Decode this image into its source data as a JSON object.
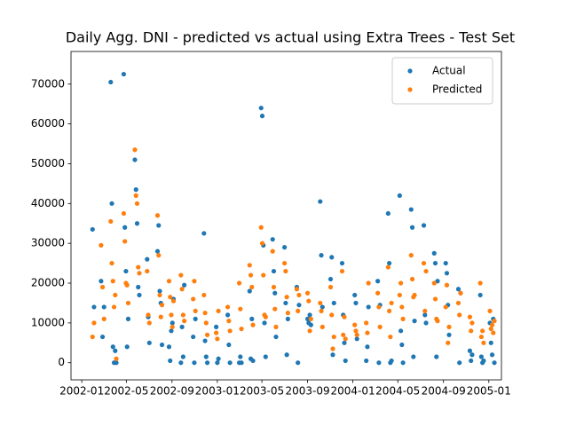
{
  "chart_data": {
    "type": "scatter",
    "title": "Daily Agg. DNI - predicted vs actual using Extra Trees - Test Set",
    "x": [
      "2002-01-30",
      "2002-02-03",
      "2002-02-22",
      "2002-02-26",
      "2002-03-02",
      "2002-03-20",
      "2002-03-23",
      "2002-03-26",
      "2002-03-29",
      "2002-04-01",
      "2002-04-04",
      "2002-04-24",
      "2002-04-27",
      "2002-04-30",
      "2002-05-03",
      "2002-05-06",
      "2002-05-24",
      "2002-05-27",
      "2002-05-30",
      "2002-06-02",
      "2002-06-05",
      "2002-06-26",
      "2002-06-29",
      "2002-07-02",
      "2002-07-24",
      "2002-07-27",
      "2002-07-30",
      "2002-08-02",
      "2002-08-05",
      "2002-08-24",
      "2002-08-27",
      "2002-08-30",
      "2002-09-02",
      "2002-09-05",
      "2002-09-25",
      "2002-09-28",
      "2002-10-01",
      "2002-10-04",
      "2002-10-28",
      "2002-10-31",
      "2002-11-03",
      "2002-11-26",
      "2002-11-29",
      "2002-12-02",
      "2002-12-05",
      "2002-12-29",
      "2003-01-01",
      "2003-01-04",
      "2003-01-29",
      "2003-02-01",
      "2003-02-04",
      "2003-03-01",
      "2003-03-04",
      "2003-03-07",
      "2003-03-29",
      "2003-04-01",
      "2003-04-04",
      "2003-04-07",
      "2003-04-29",
      "2003-05-02",
      "2003-05-05",
      "2003-05-08",
      "2003-05-11",
      "2003-05-30",
      "2003-06-02",
      "2003-06-05",
      "2003-06-08",
      "2003-07-01",
      "2003-07-04",
      "2003-07-07",
      "2003-07-10",
      "2003-08-03",
      "2003-08-06",
      "2003-08-09",
      "2003-09-01",
      "2003-09-04",
      "2003-09-07",
      "2003-09-10",
      "2003-10-05",
      "2003-10-08",
      "2003-10-11",
      "2003-11-02",
      "2003-11-05",
      "2003-11-08",
      "2003-11-11",
      "2003-12-03",
      "2003-12-06",
      "2003-12-09",
      "2003-12-12",
      "2004-01-06",
      "2004-01-09",
      "2004-01-12",
      "2004-02-06",
      "2004-02-09",
      "2004-02-12",
      "2004-03-08",
      "2004-03-11",
      "2004-03-14",
      "2004-04-05",
      "2004-04-08",
      "2004-04-11",
      "2004-04-14",
      "2004-05-06",
      "2004-05-09",
      "2004-05-12",
      "2004-05-15",
      "2004-06-06",
      "2004-06-09",
      "2004-06-12",
      "2004-06-15",
      "2004-07-10",
      "2004-07-13",
      "2004-07-16",
      "2004-08-07",
      "2004-08-10",
      "2004-08-13",
      "2004-08-16",
      "2004-09-07",
      "2004-09-10",
      "2004-09-13",
      "2004-09-16",
      "2004-10-11",
      "2004-10-14",
      "2004-10-17",
      "2004-11-11",
      "2004-11-14",
      "2004-11-17",
      "2004-12-09",
      "2004-12-12",
      "2004-12-15",
      "2004-12-18",
      "2005-01-04",
      "2005-01-07",
      "2005-01-10",
      "2005-01-13",
      "2005-01-16"
    ],
    "series": [
      {
        "name": "Actual",
        "color": "#1f77b4",
        "values": [
          33500,
          14000,
          20500,
          6500,
          14000,
          70500,
          40000,
          4000,
          0,
          3000,
          0,
          72500,
          34000,
          23000,
          4000,
          11000,
          51000,
          43500,
          35000,
          19000,
          17000,
          26000,
          11500,
          5000,
          28000,
          34500,
          18000,
          15000,
          4500,
          4000,
          500,
          8000,
          10000,
          16000,
          0,
          9000,
          1500,
          19500,
          6500,
          0,
          11000,
          32500,
          5500,
          1500,
          0,
          9000,
          0,
          1000,
          12000,
          4500,
          0,
          0,
          1500,
          0,
          18000,
          1000,
          11000,
          500,
          64000,
          62000,
          29500,
          10000,
          1500,
          31000,
          23000,
          17500,
          6500,
          29000,
          15000,
          2000,
          11000,
          19000,
          0,
          14500,
          11000,
          10000,
          12000,
          9500,
          40500,
          27000,
          14000,
          21000,
          26500,
          2000,
          15000,
          25000,
          12000,
          5000,
          500,
          17000,
          15000,
          6000,
          500,
          4000,
          14000,
          20500,
          0,
          14500,
          37500,
          25000,
          0,
          500,
          42000,
          8000,
          4500,
          0,
          38500,
          34000,
          1500,
          10500,
          34500,
          12000,
          10000,
          27500,
          25000,
          1500,
          20500,
          25000,
          22500,
          14500,
          7000,
          18500,
          0,
          17500,
          3000,
          500,
          2000,
          17000,
          1500,
          0,
          500,
          10000,
          5000,
          2000,
          11000,
          0
        ]
      },
      {
        "name": "Predicted",
        "color": "#ff7f0e",
        "values": [
          6500,
          10000,
          29500,
          19000,
          11000,
          35500,
          25000,
          20500,
          14000,
          17000,
          1000,
          37500,
          30500,
          20000,
          19500,
          15000,
          53500,
          42000,
          40000,
          24000,
          22500,
          23000,
          12000,
          10000,
          37000,
          27000,
          17000,
          11500,
          14500,
          20500,
          16500,
          12000,
          9000,
          15500,
          22000,
          18500,
          12000,
          10500,
          16000,
          20500,
          13000,
          17000,
          12500,
          10000,
          7000,
          7500,
          6000,
          13000,
          14000,
          10500,
          8000,
          20000,
          13500,
          8500,
          24500,
          22000,
          19000,
          9500,
          34000,
          30000,
          22000,
          12000,
          11500,
          28000,
          19000,
          13500,
          9000,
          25000,
          23000,
          16500,
          12500,
          18500,
          13000,
          17000,
          17500,
          15500,
          8000,
          11000,
          15000,
          13000,
          9000,
          19000,
          12000,
          3500,
          6500,
          23000,
          7000,
          11500,
          6000,
          9500,
          8000,
          7000,
          10000,
          7500,
          20000,
          17500,
          14000,
          9000,
          24000,
          13000,
          6500,
          15000,
          17000,
          20000,
          14000,
          11000,
          27000,
          21000,
          16500,
          17000,
          25000,
          13000,
          23000,
          20000,
          16000,
          11000,
          10500,
          14000,
          19500,
          5000,
          9000,
          15000,
          12000,
          17500,
          11500,
          8000,
          10000,
          20000,
          6500,
          8000,
          5000,
          13000,
          8500,
          9500,
          7500,
          10500
        ]
      }
    ],
    "xlim": [
      "2001-12-03",
      "2005-02-04"
    ],
    "xticks": [
      {
        "value": "2002-01-01",
        "label": "2002-01"
      },
      {
        "value": "2002-05-01",
        "label": "2002-05"
      },
      {
        "value": "2002-09-01",
        "label": "2002-09"
      },
      {
        "value": "2003-01-01",
        "label": "2003-01"
      },
      {
        "value": "2003-05-01",
        "label": "2003-05"
      },
      {
        "value": "2003-09-01",
        "label": "2003-09"
      },
      {
        "value": "2004-01-01",
        "label": "2004-01"
      },
      {
        "value": "2004-05-01",
        "label": "2004-05"
      },
      {
        "value": "2004-09-01",
        "label": "2004-09"
      },
      {
        "value": "2005-01-01",
        "label": "2005-01"
      }
    ],
    "ylim": [
      -4300,
      78200
    ],
    "yticks": [
      0,
      10000,
      20000,
      30000,
      40000,
      50000,
      60000,
      70000
    ],
    "legend": "upper right",
    "grid": false
  }
}
